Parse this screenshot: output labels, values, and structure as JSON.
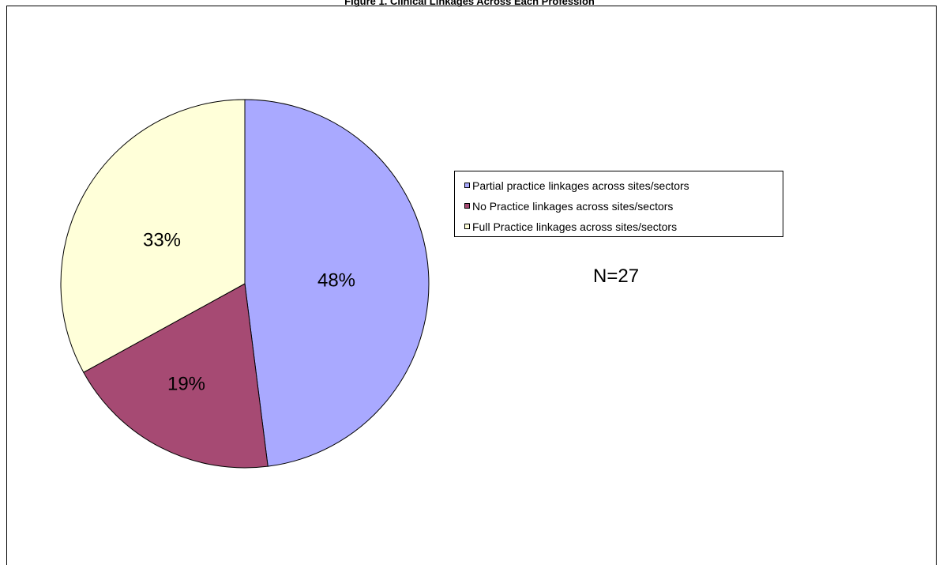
{
  "chart_data": {
    "type": "pie",
    "title": "Figure 1. Clinical Linkages Across Each Profession",
    "slices": [
      {
        "label": "Partial practice linkages across sites/sectors",
        "value": 48,
        "value_label": "48%",
        "color": "#A9A9FF"
      },
      {
        "label": "No Practice linkages across sites/sectors",
        "value": 19,
        "value_label": "19%",
        "color": "#A64A73"
      },
      {
        "label": "Full Practice linkages across sites/sectors",
        "value": 33,
        "value_label": "33%",
        "color": "#FFFFD9"
      }
    ],
    "start_angle_deg": 0,
    "direction": "clockwise",
    "legend_position": "right",
    "annotation": "N=27"
  }
}
